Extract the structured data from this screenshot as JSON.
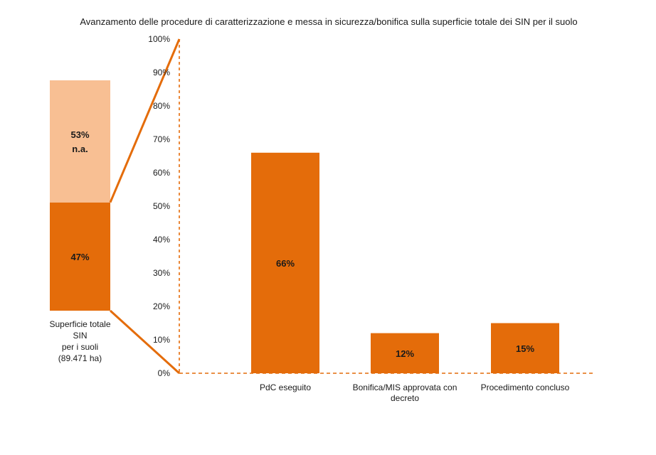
{
  "colors": {
    "dark_orange": "#E46C0A",
    "light_orange": "#F8BF93",
    "text": "#1a1a1a",
    "background": "#ffffff"
  },
  "chart_data": [
    {
      "type": "bar",
      "variant": "stacked",
      "title": "Avanzamento delle procedure di caratterizzazione e messa in sicurezza/bonifica  sulla superficie totale dei SIN per il suolo",
      "category_label_lines": [
        "Superficie totale",
        "SIN",
        "per i suoli",
        "(89.471 ha)"
      ],
      "segments": [
        {
          "value": 47,
          "label": "47%",
          "color": "#E46C0A"
        },
        {
          "value": 53,
          "label_lines": [
            "53%",
            "n.a."
          ],
          "color": "#F8BF93"
        }
      ],
      "ylim": [
        0,
        100
      ]
    },
    {
      "type": "bar",
      "categories": [
        [
          "PdC eseguito"
        ],
        [
          "Bonifica/MIS approvata con",
          "decreto"
        ],
        [
          "Procedimento concluso"
        ]
      ],
      "values": [
        66,
        12,
        15
      ],
      "value_labels": [
        "66%",
        "12%",
        "15%"
      ],
      "color": "#E46C0A",
      "ylim": [
        0,
        100
      ],
      "yticks": [
        0,
        10,
        20,
        30,
        40,
        50,
        60,
        70,
        80,
        90,
        100
      ],
      "ytick_labels": [
        "0%",
        "10%",
        "20%",
        "30%",
        "40%",
        "50%",
        "60%",
        "70%",
        "80%",
        "90%",
        "100%"
      ],
      "grid": false,
      "legend": "none"
    }
  ]
}
